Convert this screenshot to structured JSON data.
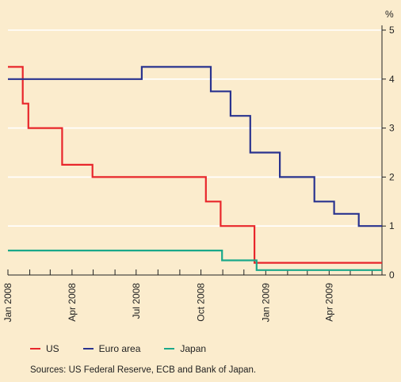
{
  "chart_data": {
    "type": "line",
    "step": true,
    "y_unit": "%",
    "ylim": [
      0,
      5
    ],
    "yticks": [
      0,
      1,
      2,
      3,
      4,
      5
    ],
    "xlim": [
      "2008-01-01",
      "2009-06-15"
    ],
    "x_tick_labels": [
      {
        "label": "Jan 2008",
        "date": "2008-01-01"
      },
      {
        "label": "Apr 2008",
        "date": "2008-04-01"
      },
      {
        "label": "Jul 2008",
        "date": "2008-07-01"
      },
      {
        "label": "Oct 2008",
        "date": "2008-10-01"
      },
      {
        "label": "Jan 2009",
        "date": "2009-01-01"
      },
      {
        "label": "Apr 2009",
        "date": "2009-04-01"
      }
    ],
    "grid": true,
    "legend_position": "bottom",
    "series": [
      {
        "name": "US",
        "color": "#e8262b",
        "points": [
          [
            "2008-01-01",
            4.25
          ],
          [
            "2008-01-22",
            3.5
          ],
          [
            "2008-01-30",
            3.0
          ],
          [
            "2008-03-18",
            2.25
          ],
          [
            "2008-04-30",
            2.0
          ],
          [
            "2008-10-08",
            1.5
          ],
          [
            "2008-10-29",
            1.0
          ],
          [
            "2008-12-16",
            0.25
          ],
          [
            "2009-06-15",
            0.25
          ]
        ]
      },
      {
        "name": "Euro area",
        "color": "#29338f",
        "points": [
          [
            "2008-01-01",
            4.0
          ],
          [
            "2008-07-09",
            4.25
          ],
          [
            "2008-10-15",
            3.75
          ],
          [
            "2008-11-12",
            3.25
          ],
          [
            "2008-12-10",
            2.5
          ],
          [
            "2009-01-21",
            2.0
          ],
          [
            "2009-03-11",
            1.5
          ],
          [
            "2009-04-08",
            1.25
          ],
          [
            "2009-05-13",
            1.0
          ],
          [
            "2009-06-15",
            1.0
          ]
        ]
      },
      {
        "name": "Japan",
        "color": "#1aa88a",
        "points": [
          [
            "2008-01-01",
            0.5
          ],
          [
            "2008-10-31",
            0.3
          ],
          [
            "2008-12-19",
            0.1
          ],
          [
            "2009-06-15",
            0.1
          ]
        ]
      }
    ]
  },
  "source": "Sources: US Federal Reserve, ECB and Bank of Japan.",
  "colors": {
    "background": "#fbeccd",
    "grid": "#ffffff",
    "axis": "#222222"
  }
}
